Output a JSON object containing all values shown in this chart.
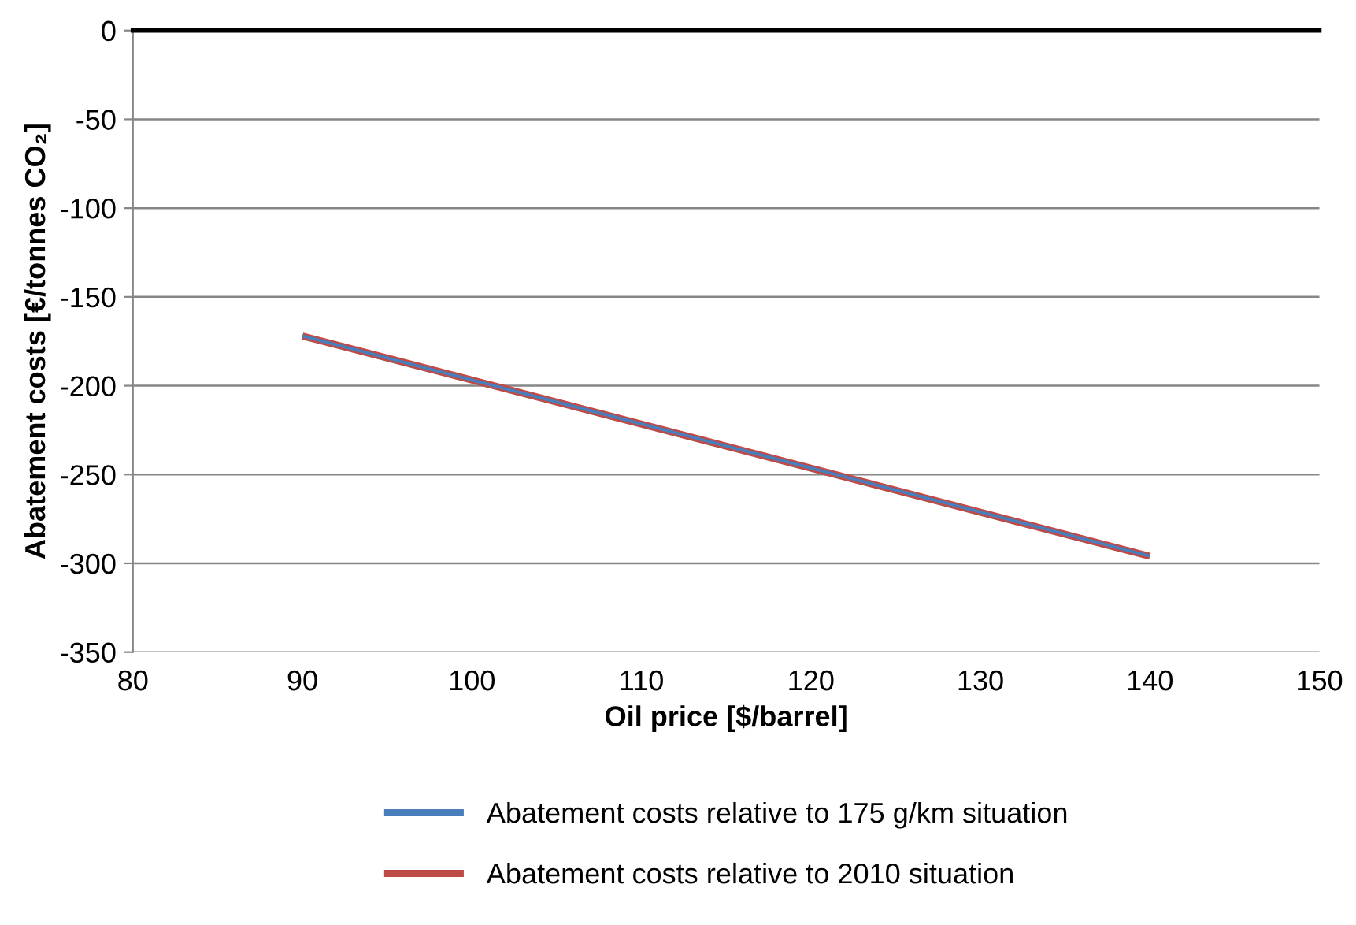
{
  "chart_data": {
    "type": "line",
    "xlabel": "Oil price [$/barrel]",
    "ylabel": "Abatement costs [€/tonnes CO₂]",
    "x": [
      90,
      140
    ],
    "series": [
      {
        "name": "Abatement costs relative to 175 g/km situation",
        "color": "#4a7ebb",
        "values": [
          -172,
          -296
        ]
      },
      {
        "name": "Abatement costs relative to 2010 situation",
        "color": "#be4b48",
        "values": [
          -172,
          -296
        ]
      }
    ],
    "xlim": [
      80,
      150
    ],
    "xticks": [
      80,
      90,
      100,
      110,
      120,
      130,
      140,
      150
    ],
    "ylim": [
      -350,
      0
    ],
    "yticks": [
      -350,
      -300,
      -250,
      -200,
      -150,
      -100,
      -50,
      0
    ],
    "ref_lines": [
      {
        "axis": "y",
        "value": 0,
        "color": "#000000"
      }
    ],
    "grid": "y",
    "legend": "bottom",
    "marker": "none",
    "line_style": "solid"
  }
}
